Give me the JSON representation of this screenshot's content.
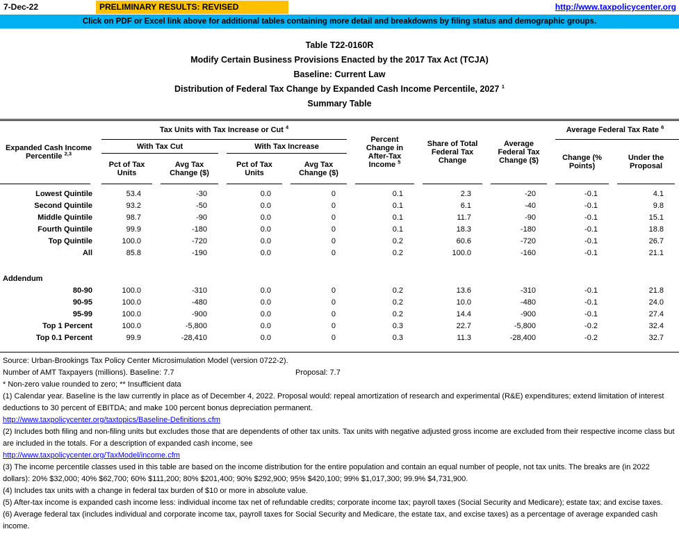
{
  "header": {
    "date": "7-Dec-22",
    "prelim_banner": "PRELIMINARY RESULTS: REVISED",
    "site_link": "http://www.taxpolicycenter.org",
    "notice": "Click on PDF or Excel link above for additional tables containing more detail and breakdowns by filing status and demographic groups.",
    "colors": {
      "prelim_bg": "#FFC000",
      "notice_bg": "#00B0F0",
      "link": "#0000FF"
    }
  },
  "title": {
    "line1": "Table T22-0160R",
    "line2": "Modify Certain Business Provisions Enacted by the 2017 Tax Act (TCJA)",
    "line3": "Baseline: Current Law",
    "line4": "Distribution of Federal Tax Change by Expanded Cash Income Percentile, 2027",
    "line4_sup": "1",
    "line5": "Summary Table"
  },
  "table": {
    "header": {
      "row_label": {
        "label": "Expanded Cash Income Percentile",
        "sup": "2,3"
      },
      "group1": {
        "label": "Tax Units with Tax Increase or Cut",
        "sup": "4"
      },
      "with_tax_cut": {
        "label": "With Tax Cut",
        "cols": [
          "Pct of Tax Units",
          "Avg Tax Change ($)"
        ]
      },
      "with_tax_increase": {
        "label": "With Tax Increase",
        "cols": [
          "Pct of Tax Units",
          "Avg Tax Change ($)"
        ]
      },
      "col_pct_change": {
        "label": "Percent Change in After-Tax Income",
        "sup": "5"
      },
      "col_share": "Share of Total Federal Tax Change",
      "col_avg_change": "Average Federal Tax Change ($)",
      "group2": {
        "label": "Average Federal Tax Rate",
        "sup": "6"
      },
      "group2_cols": [
        "Change (% Points)",
        "Under the Proposal"
      ]
    },
    "rows": [
      {
        "label": "Lowest Quintile",
        "values": [
          "53.4",
          "-30",
          "0.0",
          "0",
          "0.1",
          "2.3",
          "-20",
          "-0.1",
          "4.1"
        ]
      },
      {
        "label": "Second Quintile",
        "values": [
          "93.2",
          "-50",
          "0.0",
          "0",
          "0.1",
          "6.1",
          "-40",
          "-0.1",
          "9.8"
        ]
      },
      {
        "label": "Middle Quintile",
        "values": [
          "98.7",
          "-90",
          "0.0",
          "0",
          "0.1",
          "11.7",
          "-90",
          "-0.1",
          "15.1"
        ]
      },
      {
        "label": "Fourth Quintile",
        "values": [
          "99.9",
          "-180",
          "0.0",
          "0",
          "0.1",
          "18.3",
          "-180",
          "-0.1",
          "18.8"
        ]
      },
      {
        "label": "Top Quintile",
        "values": [
          "100.0",
          "-720",
          "0.0",
          "0",
          "0.2",
          "60.6",
          "-720",
          "-0.1",
          "26.7"
        ]
      },
      {
        "label": "All",
        "values": [
          "85.8",
          "-190",
          "0.0",
          "0",
          "0.2",
          "100.0",
          "-160",
          "-0.1",
          "21.1"
        ]
      }
    ],
    "addendum_label": "Addendum",
    "addendum_rows": [
      {
        "label": "80-90",
        "values": [
          "100.0",
          "-310",
          "0.0",
          "0",
          "0.2",
          "13.6",
          "-310",
          "-0.1",
          "21.8"
        ]
      },
      {
        "label": "90-95",
        "values": [
          "100.0",
          "-480",
          "0.0",
          "0",
          "0.2",
          "10.0",
          "-480",
          "-0.1",
          "24.0"
        ]
      },
      {
        "label": "95-99",
        "values": [
          "100.0",
          "-900",
          "0.0",
          "0",
          "0.2",
          "14.4",
          "-900",
          "-0.1",
          "27.4"
        ]
      },
      {
        "label": "Top 1 Percent",
        "values": [
          "100.0",
          "-5,800",
          "0.0",
          "0",
          "0.3",
          "22.7",
          "-5,800",
          "-0.2",
          "32.4"
        ]
      },
      {
        "label": "Top 0.1 Percent",
        "values": [
          "99.9",
          "-28,410",
          "0.0",
          "0",
          "0.3",
          "11.3",
          "-28,400",
          "-0.2",
          "32.7"
        ]
      }
    ]
  },
  "footnotes": {
    "source": "Source: Urban-Brookings Tax Policy Center Microsimulation Model (version 0722-2).",
    "amt_label": "Number of AMT Taxpayers (millions).  Baseline: 7.7",
    "amt_proposal": "Proposal: 7.7",
    "stars": "* Non-zero value rounded to zero; ** Insufficient data",
    "note1": "(1) Calendar year. Baseline is the law currently in place as of December 4, 2022. Proposal would: repeal amortization of research and experimental (R&E) expenditures; extend limitation of interest deductions to 30 percent of EBITDA; and make 100 percent bonus depreciation permanent.",
    "link1": "http://www.taxpolicycenter.org/taxtopics/Baseline-Definitions.cfm",
    "note2": "(2) Includes both filing and non-filing units but excludes those that are dependents of other tax units. Tax units with negative adjusted gross income are excluded from their respective income class but are included in the totals. For a description of expanded cash income, see",
    "link2": "http://www.taxpolicycenter.org/TaxModel/income.cfm",
    "note3": "(3) The income percentile classes used in this table are based on the income distribution for the entire population and contain an equal number of people, not tax units. The breaks are (in 2022 dollars): 20% $32,000; 40% $62,700; 60% $111,200; 80% $201,400; 90% $292,900; 95% $420,100; 99% $1,017,300; 99.9% $4,731,900.",
    "note4": "(4) Includes tax units with a change in federal tax burden of $10 or more in absolute value.",
    "note5": "(5) After-tax income is expanded cash income less: individual income tax net of refundable credits; corporate income tax; payroll taxes (Social Security and Medicare); estate tax; and excise taxes.",
    "note6": "(6) Average federal tax (includes individual and corporate income tax, payroll taxes for Social Security and Medicare, the estate tax, and excise taxes) as a percentage of average expanded cash income."
  }
}
